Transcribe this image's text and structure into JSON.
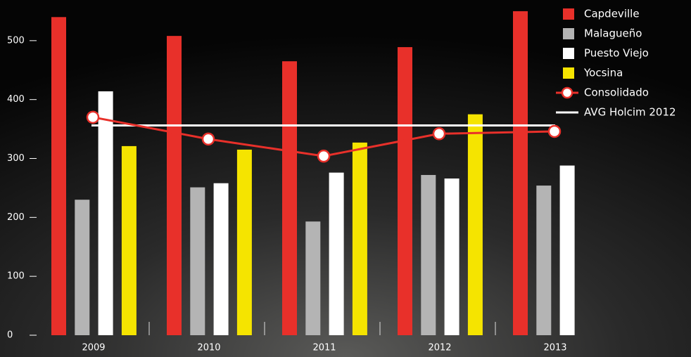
{
  "chart_data": {
    "type": "bar",
    "categories": [
      "2009",
      "2010",
      "2011",
      "2012",
      "2013"
    ],
    "series": [
      {
        "name": "Capdeville",
        "color": "#e8302a",
        "values": [
          540,
          508,
          465,
          489,
          550
        ]
      },
      {
        "name": "Malagueño",
        "color": "#b4b4b4",
        "values": [
          230,
          251,
          193,
          272,
          254
        ]
      },
      {
        "name": "Puesto Viejo",
        "color": "#ffffff",
        "values": [
          414,
          258,
          276,
          266,
          288
        ]
      },
      {
        "name": "Yocsina",
        "color": "#f5e400",
        "values": [
          321,
          315,
          327,
          375,
          null
        ]
      }
    ],
    "line": {
      "name": "Consolidado",
      "color": "#e8302a",
      "values": [
        370,
        333,
        304,
        342,
        346
      ]
    },
    "reference": {
      "name": "AVG Holcim 2012",
      "color": "#ffffff",
      "value": 356
    },
    "ylim": [
      0,
      569
    ],
    "yticks": [
      0,
      100,
      200,
      300,
      400,
      500
    ]
  }
}
